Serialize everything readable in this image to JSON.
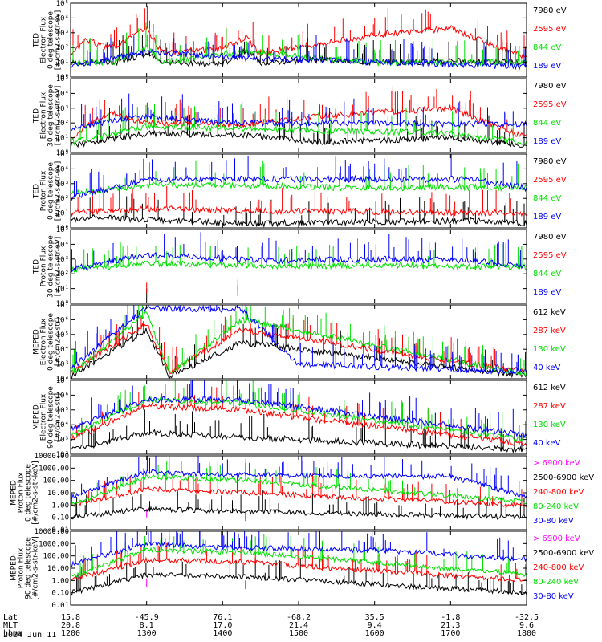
{
  "colors": {
    "black": "#000000",
    "red": "#ff0000",
    "green": "#00e000",
    "blue": "#0000ff",
    "magenta": "#ff00ff"
  },
  "footer": {
    "row_labels": [
      "Lat",
      "MLT",
      "hhmm"
    ],
    "date": "2024 Jun 11",
    "columns": [
      {
        "lat": "15.8",
        "mlt": "20.8",
        "hhmm": "1200"
      },
      {
        "lat": "-45.9",
        "mlt": "8.1",
        "hhmm": "1300"
      },
      {
        "lat": "76.1",
        "mlt": "17.0",
        "hhmm": "1400"
      },
      {
        "lat": "-68.2",
        "mlt": "21.4",
        "hhmm": "1500"
      },
      {
        "lat": "35.5",
        "mlt": "9.4",
        "hhmm": "1600"
      },
      {
        "lat": "-1.8",
        "mlt": "21.3",
        "hhmm": "1700"
      },
      {
        "lat": "-32.5",
        "mlt": "9.6",
        "hhmm": "1800"
      }
    ]
  },
  "chart_data": [
    {
      "type": "line",
      "ylabel": [
        "TED",
        "Electron Flux",
        "0 deg telescope",
        "[#/cm2-s-str-eV]"
      ],
      "yscale": "log",
      "ylim": [
        1,
        100000
      ],
      "ytick_labels": [
        "10⁰",
        "10¹",
        "10²",
        "10³",
        "10⁴",
        "10⁵"
      ],
      "xlim": [
        1200,
        1800
      ],
      "series": [
        {
          "name": "7980 eV",
          "color": "#000000",
          "values": [
            [
              1200,
              10
            ],
            [
              1230,
              12
            ],
            [
              1255,
              8
            ],
            [
              1300,
              40
            ],
            [
              1320,
              10
            ],
            [
              1400,
              8
            ],
            [
              1430,
              60
            ],
            [
              1450,
              10
            ],
            [
              1530,
              15
            ],
            [
              1600,
              10
            ],
            [
              1700,
              12
            ],
            [
              1800,
              10
            ]
          ]
        },
        {
          "name": "2595 eV",
          "color": "#ff0000",
          "values": [
            [
              1200,
              30
            ],
            [
              1220,
              300
            ],
            [
              1255,
              100
            ],
            [
              1300,
              2000
            ],
            [
              1320,
              50
            ],
            [
              1400,
              80
            ],
            [
              1430,
              500
            ],
            [
              1450,
              40
            ],
            [
              1530,
              200
            ],
            [
              1610,
              800
            ],
            [
              1700,
              2000
            ],
            [
              1800,
              20
            ]
          ]
        },
        {
          "name": "844 eV",
          "color": "#00e000",
          "values": [
            [
              1200,
              10
            ],
            [
              1255,
              10
            ],
            [
              1300,
              100
            ],
            [
              1320,
              10
            ],
            [
              1430,
              50
            ],
            [
              1600,
              10
            ],
            [
              1800,
              10
            ]
          ]
        },
        {
          "name": "189 eV",
          "color": "#0000ff",
          "values": [
            [
              1200,
              5
            ],
            [
              1300,
              50
            ],
            [
              1430,
              20
            ],
            [
              1800,
              5
            ]
          ]
        }
      ]
    },
    {
      "type": "line",
      "ylabel": [
        "TED",
        "Electron Flux",
        "30 deg telescope",
        "[#/cm2-s-str-eV]"
      ],
      "yscale": "log",
      "ylim": [
        1,
        100000
      ],
      "ytick_labels": [
        "10⁰",
        "10¹",
        "10²",
        "10³",
        "10⁴",
        "10⁵"
      ],
      "xlim": [
        1200,
        1800
      ],
      "series": [
        {
          "name": "7980 eV",
          "color": "#000000",
          "values": [
            [
              1200,
              3
            ],
            [
              1300,
              20
            ],
            [
              1430,
              15
            ],
            [
              1530,
              5
            ],
            [
              1700,
              10
            ],
            [
              1800,
              3
            ]
          ]
        },
        {
          "name": "2595 eV",
          "color": "#ff0000",
          "values": [
            [
              1200,
              10
            ],
            [
              1250,
              500
            ],
            [
              1300,
              100
            ],
            [
              1430,
              80
            ],
            [
              1530,
              300
            ],
            [
              1700,
              1000
            ],
            [
              1800,
              10
            ]
          ]
        },
        {
          "name": "844 eV",
          "color": "#00e000",
          "values": [
            [
              1200,
              5
            ],
            [
              1300,
              60
            ],
            [
              1430,
              40
            ],
            [
              1700,
              20
            ],
            [
              1800,
              5
            ]
          ]
        },
        {
          "name": "189 eV",
          "color": "#0000ff",
          "values": [
            [
              1200,
              50
            ],
            [
              1300,
              300
            ],
            [
              1400,
              100
            ],
            [
              1600,
              100
            ],
            [
              1800,
              80
            ]
          ]
        }
      ]
    },
    {
      "type": "line",
      "ylabel": [
        "TED",
        "Proton Flux",
        "0 deg telescope",
        "[#/cm2-s-str-eV]"
      ],
      "yscale": "log",
      "ylim": [
        1,
        100000
      ],
      "ytick_labels": [
        "10⁰",
        "10¹",
        "10²",
        "10³",
        "10⁴",
        "10⁵"
      ],
      "xlim": [
        1200,
        1800
      ],
      "series": [
        {
          "name": "7980 eV",
          "color": "#000000",
          "values": [
            [
              1200,
              3
            ],
            [
              1230,
              5
            ],
            [
              1430,
              2
            ],
            [
              1720,
              3
            ],
            [
              1800,
              2
            ]
          ]
        },
        {
          "name": "2595 eV",
          "color": "#ff0000",
          "values": [
            [
              1200,
              10
            ],
            [
              1300,
              20
            ],
            [
              1420,
              15
            ],
            [
              1800,
              10
            ]
          ]
        },
        {
          "name": "844 eV",
          "color": "#00e000",
          "values": [
            [
              1200,
              200
            ],
            [
              1300,
              800
            ],
            [
              1400,
              800
            ],
            [
              1500,
              600
            ],
            [
              1600,
              500
            ],
            [
              1700,
              600
            ],
            [
              1800,
              500
            ]
          ]
        },
        {
          "name": "189 eV",
          "color": "#0000ff",
          "values": [
            [
              1200,
              100
            ],
            [
              1300,
              2000
            ],
            [
              1450,
              2000
            ],
            [
              1620,
              2000
            ],
            [
              1730,
              2000
            ],
            [
              1800,
              500
            ]
          ]
        }
      ]
    },
    {
      "type": "line",
      "ylabel": [
        "TED",
        "Proton Flux",
        "30 deg telescope",
        "[#/cm2-s-str-eV]"
      ],
      "yscale": "log",
      "ylim": [
        1,
        100000
      ],
      "ytick_labels": [
        "10⁰",
        "10¹",
        "10²",
        "10³",
        "10⁴",
        "10⁵"
      ],
      "xlim": [
        1200,
        1800
      ],
      "series": [
        {
          "name": "7980 eV",
          "color": "#000000",
          "values": [
            [
              1300,
              2
            ],
            [
              1420,
              3
            ]
          ]
        },
        {
          "name": "2595 eV",
          "color": "#ff0000",
          "values": [
            [
              1300,
              5
            ],
            [
              1420,
              8
            ]
          ]
        },
        {
          "name": "844 eV",
          "color": "#00e000",
          "values": [
            [
              1200,
              200
            ],
            [
              1300,
              500
            ],
            [
              1400,
              400
            ],
            [
              1500,
              300
            ],
            [
              1600,
              400
            ],
            [
              1700,
              300
            ],
            [
              1800,
              300
            ]
          ]
        },
        {
          "name": "189 eV",
          "color": "#0000ff",
          "values": [
            [
              1200,
              200
            ],
            [
              1300,
              2000
            ],
            [
              1450,
              800
            ],
            [
              1620,
              1000
            ],
            [
              1730,
              800
            ],
            [
              1800,
              300
            ]
          ]
        }
      ]
    },
    {
      "type": "line",
      "ylabel": [
        "MEPED",
        "Electron Flux",
        "0 deg telescope",
        "[#/cm2-s-str]"
      ],
      "yscale": "log",
      "ylim": [
        100,
        10000000
      ],
      "ytick_labels": [
        "10²",
        "10³",
        "10⁴",
        "10⁵",
        "10⁶",
        "10⁷"
      ],
      "xlim": [
        1200,
        1800
      ],
      "series": [
        {
          "name": "612 keV",
          "color": "#000000",
          "values": [
            [
              1200,
              150
            ],
            [
              1300,
              200000
            ],
            [
              1330,
              150
            ],
            [
              1425,
              30000
            ],
            [
              1800,
              150
            ]
          ]
        },
        {
          "name": "287 keV",
          "color": "#ff0000",
          "values": [
            [
              1200,
              300
            ],
            [
              1300,
              500000
            ],
            [
              1330,
              300
            ],
            [
              1425,
              200000
            ],
            [
              1800,
              300
            ]
          ]
        },
        {
          "name": "130 keV",
          "color": "#00e000",
          "values": [
            [
              1200,
              200
            ],
            [
              1300,
              3000000
            ],
            [
              1330,
              200
            ],
            [
              1425,
              1000000
            ],
            [
              1800,
              200
            ]
          ]
        },
        {
          "name": "40 keV",
          "color": "#0000ff",
          "values": [
            [
              1200,
              500
            ],
            [
              1300,
              6000000
            ],
            [
              1425,
              5000000
            ],
            [
              1500,
              1000
            ],
            [
              1800,
              300
            ]
          ]
        }
      ]
    },
    {
      "type": "line",
      "ylabel": [
        "MEPED",
        "Electron Flux",
        "90 deg telescope",
        "[#/cm2-s-str]"
      ],
      "yscale": "log",
      "ylim": [
        100,
        10000000
      ],
      "ytick_labels": [
        "10²",
        "10³",
        "10⁴",
        "10⁵",
        "10⁶",
        "10⁷"
      ],
      "xlim": [
        1200,
        1800
      ],
      "series": [
        {
          "name": "612 keV",
          "color": "#000000",
          "values": [
            [
              1200,
              200
            ],
            [
              1300,
              3000
            ],
            [
              1420,
              1500
            ],
            [
              1800,
              200
            ]
          ]
        },
        {
          "name": "287 keV",
          "color": "#ff0000",
          "values": [
            [
              1200,
              1000
            ],
            [
              1300,
              200000
            ],
            [
              1420,
              100000
            ],
            [
              1800,
              500
            ]
          ]
        },
        {
          "name": "130 keV",
          "color": "#00e000",
          "values": [
            [
              1200,
              2000
            ],
            [
              1300,
              500000
            ],
            [
              1420,
              300000
            ],
            [
              1800,
              1000
            ]
          ]
        },
        {
          "name": "40 keV",
          "color": "#0000ff",
          "values": [
            [
              1200,
              5000
            ],
            [
              1300,
              500000
            ],
            [
              1420,
              500000
            ],
            [
              1800,
              2000
            ]
          ]
        }
      ]
    },
    {
      "type": "line",
      "ylabel": [
        "MEPED",
        "Proton Flux",
        "0 deg telescope",
        "[#/cm2-s-str-keV]"
      ],
      "yscale": "log",
      "ylim": [
        0.01,
        10000
      ],
      "ytick_labels": [
        "0.01",
        "0.10",
        "1.00",
        "10.00",
        "100.00",
        "1000.00",
        "10000.00"
      ],
      "xlim": [
        1200,
        1800
      ],
      "series": [
        {
          "name": "> 6900 keV",
          "color": "#ff00ff",
          "values": [
            [
              1300,
              0.1
            ],
            [
              1430,
              0.05
            ]
          ]
        },
        {
          "name": "2500-6900 keV",
          "color": "#000000",
          "values": [
            [
              1200,
              0.1
            ],
            [
              1300,
              0.5
            ],
            [
              1430,
              0.3
            ],
            [
              1800,
              0.1
            ]
          ]
        },
        {
          "name": "240-800 keV",
          "color": "#ff0000",
          "values": [
            [
              1200,
              1
            ],
            [
              1300,
              20
            ],
            [
              1430,
              10
            ],
            [
              1800,
              1
            ]
          ]
        },
        {
          "name": "80-240 keV",
          "color": "#00e000",
          "values": [
            [
              1200,
              1
            ],
            [
              1300,
              200
            ],
            [
              1430,
              100
            ],
            [
              1800,
              2
            ]
          ]
        },
        {
          "name": "30-80 keV",
          "color": "#0000ff",
          "values": [
            [
              1200,
              5
            ],
            [
              1300,
              500
            ],
            [
              1400,
              300
            ],
            [
              1700,
              200
            ],
            [
              1800,
              5
            ]
          ]
        }
      ]
    },
    {
      "type": "line",
      "ylabel": [
        "MEPED",
        "Proton Flux",
        "90 deg telescope",
        "[#/cm2-s-str-keV]"
      ],
      "yscale": "log",
      "ylim": [
        0.01,
        10000
      ],
      "ytick_labels": [
        "0.01",
        "0.10",
        "1.00",
        "10.00",
        "100.00",
        "1000.00",
        "10000.00"
      ],
      "xlim": [
        1200,
        1800
      ],
      "series": [
        {
          "name": "> 6900 keV",
          "color": "#ff00ff",
          "values": [
            [
              1300,
              0.3
            ],
            [
              1430,
              0.2
            ]
          ]
        },
        {
          "name": "2500-6900 keV",
          "color": "#000000",
          "values": [
            [
              1200,
              0.1
            ],
            [
              1300,
              3
            ],
            [
              1430,
              2
            ],
            [
              1800,
              0.1
            ]
          ]
        },
        {
          "name": "240-800 keV",
          "color": "#ff0000",
          "values": [
            [
              1200,
              1
            ],
            [
              1300,
              50
            ],
            [
              1430,
              30
            ],
            [
              1800,
              1
            ]
          ]
        },
        {
          "name": "80-240 keV",
          "color": "#00e000",
          "values": [
            [
              1200,
              2
            ],
            [
              1300,
              300
            ],
            [
              1430,
              200
            ],
            [
              1800,
              3
            ]
          ]
        },
        {
          "name": "30-80 keV",
          "color": "#0000ff",
          "values": [
            [
              1200,
              20
            ],
            [
              1300,
              1000
            ],
            [
              1400,
              500
            ],
            [
              1600,
              300
            ],
            [
              1800,
              50
            ]
          ]
        }
      ]
    }
  ]
}
